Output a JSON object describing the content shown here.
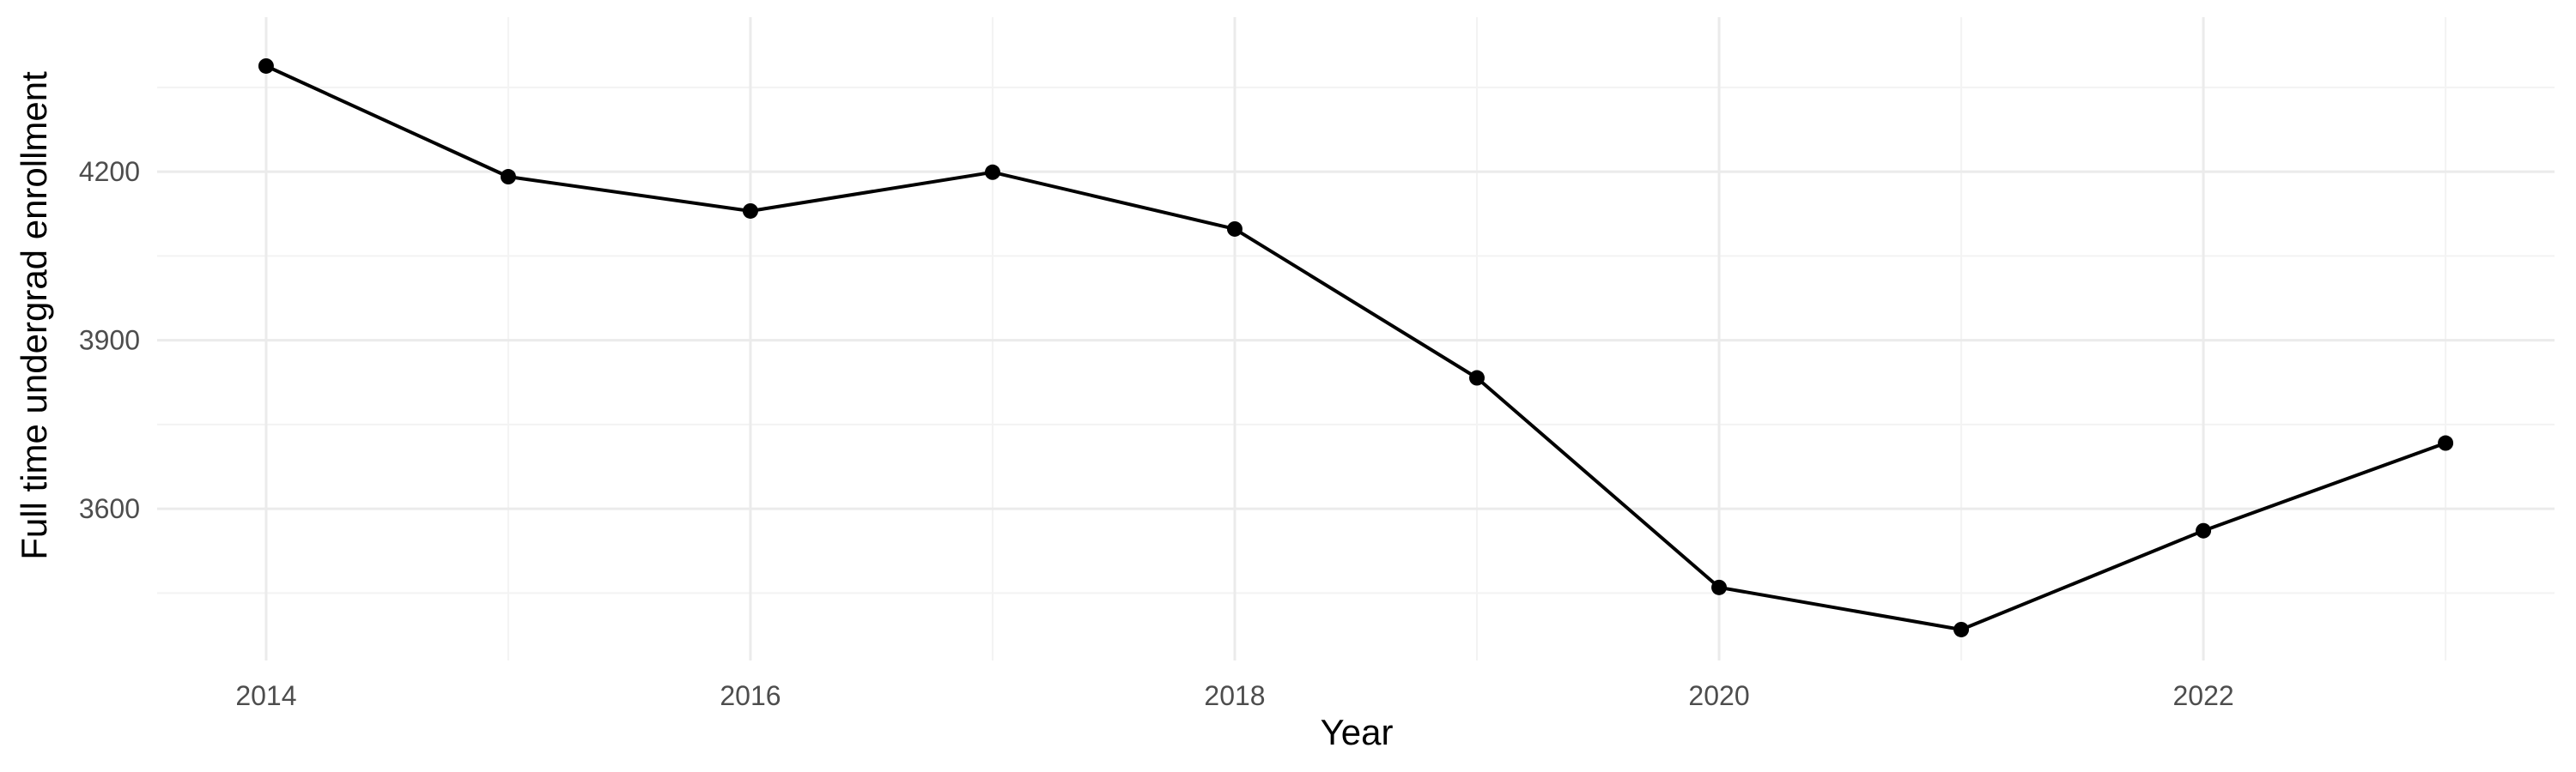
{
  "chart_data": {
    "type": "line",
    "title": "",
    "xlabel": "Year",
    "ylabel": "Full time undergrad enrollment",
    "x": [
      2014,
      2015,
      2016,
      2017,
      2018,
      2019,
      2020,
      2021,
      2022,
      2023
    ],
    "series": [
      {
        "values": [
          4388,
          4191,
          4130,
          4199,
          4098,
          3833,
          3460,
          3385,
          3561,
          3717
        ]
      }
    ],
    "x_ticks": [
      2014,
      2016,
      2018,
      2020,
      2022
    ],
    "x_tick_labels": [
      "2014",
      "2016",
      "2018",
      "2020",
      "2022"
    ],
    "y_ticks": [
      3600,
      3900,
      4200
    ],
    "y_tick_labels": [
      "3600",
      "3900",
      "4200"
    ],
    "xlim": [
      2013.55,
      2023.45
    ],
    "ylim": [
      3330,
      4475
    ],
    "grid": true,
    "line_color": "#000000",
    "marker": "circle"
  }
}
